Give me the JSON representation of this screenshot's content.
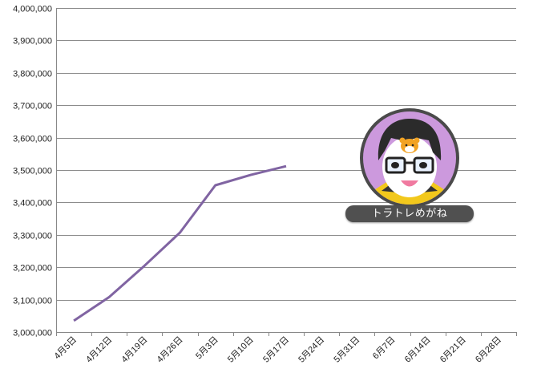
{
  "chart_data": {
    "type": "line",
    "title": "",
    "xlabel": "",
    "ylabel": "",
    "ylim": [
      3000000,
      4000000
    ],
    "y_ticks": [
      "3,000,000",
      "3,100,000",
      "3,200,000",
      "3,300,000",
      "3,400,000",
      "3,500,000",
      "3,600,000",
      "3,700,000",
      "3,800,000",
      "3,900,000",
      "4,000,000"
    ],
    "y_tick_values": [
      3000000,
      3100000,
      3200000,
      3300000,
      3400000,
      3500000,
      3600000,
      3700000,
      3800000,
      3900000,
      4000000
    ],
    "categories": [
      "4月5日",
      "4月12日",
      "4月19日",
      "4月26日",
      "5月3日",
      "5月10日",
      "5月17日",
      "5月24日",
      "5月31日",
      "6月7日",
      "6月14日",
      "6月21日",
      "6月28日"
    ],
    "grid": true,
    "series": [
      {
        "values": [
          3035000,
          3108000,
          3205000,
          3307000,
          3453000,
          3485000,
          3512000,
          null,
          null,
          null,
          null,
          null,
          null
        ]
      }
    ],
    "line_color": "#8064a2"
  },
  "mascot": {
    "label": "トラトレめがね",
    "colors": {
      "ring": "#cc99dd",
      "badge": "#505050"
    }
  }
}
